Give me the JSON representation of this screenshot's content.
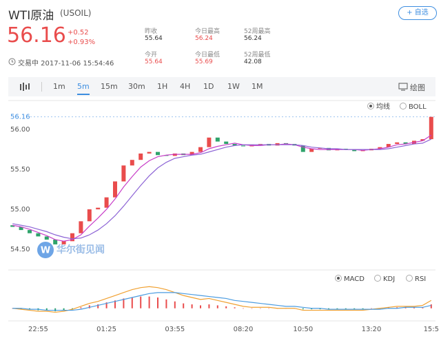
{
  "header": {
    "title": "WTI原油",
    "symbol": "(USOIL)",
    "button": "+ 自选",
    "price": "56.16",
    "change": "+0.52",
    "change_pct": "+0.93%",
    "status": "交易中 2017-11-06 15:54:46",
    "stats": [
      {
        "label": "昨收",
        "value": "55.64"
      },
      {
        "label": "今日最高",
        "value": "56.24"
      },
      {
        "label": "52周最高",
        "value": "56.24"
      },
      {
        "label": "今开",
        "value": "55.64"
      },
      {
        "label": "今日最低",
        "value": "55.69"
      },
      {
        "label": "52周最低",
        "value": "42.08"
      }
    ]
  },
  "toolbar": {
    "intervals": [
      "1m",
      "5m",
      "15m",
      "30m",
      "1H",
      "4H",
      "1D",
      "1W",
      "1M"
    ],
    "draw": "绘图"
  },
  "controls": {
    "overlay": [
      "均线",
      "BOLL"
    ],
    "panel": [
      "MACD",
      "KDJ",
      "RSI"
    ],
    "watermark": "华尔街见闻"
  },
  "chart_data": {
    "type": "candlestick",
    "up_color": "#e94c4c",
    "down_color": "#2fa36b",
    "categories": [
      null,
      null,
      null,
      "22:55",
      null,
      null,
      null,
      null,
      null,
      null,
      null,
      "01:25",
      null,
      null,
      null,
      null,
      null,
      null,
      null,
      "03:55",
      null,
      null,
      null,
      null,
      null,
      null,
      null,
      "08:20",
      null,
      null,
      null,
      null,
      null,
      null,
      "10:50",
      null,
      null,
      null,
      null,
      null,
      null,
      null,
      "13:20",
      null,
      null,
      null,
      null,
      null,
      null,
      "15:5"
    ],
    "open": [
      54.8,
      54.78,
      54.74,
      54.7,
      54.66,
      54.62,
      54.56,
      54.6,
      54.7,
      54.85,
      55.0,
      55.02,
      55.15,
      55.35,
      55.55,
      55.62,
      55.7,
      55.72,
      55.68,
      55.67,
      55.7,
      55.68,
      55.72,
      55.78,
      55.9,
      55.85,
      55.82,
      55.8,
      55.79,
      55.81,
      55.82,
      55.8,
      55.83,
      55.82,
      55.8,
      55.72,
      55.76,
      55.77,
      55.74,
      55.76,
      55.75,
      55.73,
      55.74,
      55.76,
      55.78,
      55.82,
      55.84,
      55.82,
      55.86,
      55.88
    ],
    "close": [
      54.78,
      54.74,
      54.7,
      54.66,
      54.62,
      54.56,
      54.6,
      54.7,
      54.85,
      55.0,
      55.02,
      55.15,
      55.35,
      55.55,
      55.62,
      55.7,
      55.72,
      55.68,
      55.67,
      55.7,
      55.68,
      55.72,
      55.78,
      55.9,
      55.85,
      55.82,
      55.8,
      55.79,
      55.81,
      55.82,
      55.8,
      55.83,
      55.82,
      55.8,
      55.72,
      55.76,
      55.77,
      55.74,
      55.76,
      55.75,
      55.73,
      55.74,
      55.76,
      55.78,
      55.82,
      55.84,
      55.82,
      55.86,
      55.88,
      56.16
    ],
    "ma": [
      {
        "color": "#c83ec8",
        "values": [
          54.8,
          54.78,
          54.75,
          54.71,
          54.67,
          54.62,
          54.6,
          54.62,
          54.68,
          54.79,
          54.89,
          55.0,
          55.13,
          55.28,
          55.41,
          55.53,
          55.61,
          55.66,
          55.68,
          55.69,
          55.69,
          55.69,
          55.71,
          55.76,
          55.79,
          55.81,
          55.83,
          55.81,
          55.8,
          55.8,
          55.81,
          55.81,
          55.82,
          55.81,
          55.78,
          55.76,
          55.75,
          55.75,
          55.75,
          55.75,
          55.75,
          55.74,
          55.75,
          55.76,
          55.78,
          55.81,
          55.82,
          55.84,
          55.86,
          55.93
        ]
      },
      {
        "color": "#8c63d5",
        "values": [
          54.82,
          54.8,
          54.78,
          54.75,
          54.72,
          54.68,
          54.65,
          54.63,
          54.64,
          54.68,
          54.74,
          54.82,
          54.92,
          55.04,
          55.17,
          55.3,
          55.42,
          55.52,
          55.59,
          55.64,
          55.66,
          55.68,
          55.69,
          55.72,
          55.75,
          55.78,
          55.8,
          55.81,
          55.81,
          55.81,
          55.81,
          55.81,
          55.81,
          55.81,
          55.8,
          55.78,
          55.77,
          55.76,
          55.76,
          55.75,
          55.75,
          55.75,
          55.75,
          55.75,
          55.76,
          55.78,
          55.8,
          55.82,
          55.83,
          55.88
        ]
      }
    ],
    "current": {
      "value": 56.16,
      "label": "56.16"
    },
    "ylim": [
      54.3,
      56.33
    ],
    "yticks": [
      {
        "value": 54.5,
        "label": "54.50"
      },
      {
        "value": 55,
        "label": "55.00"
      },
      {
        "value": 55.5,
        "label": "55.50"
      },
      {
        "value": 56,
        "label": "56.00"
      }
    ],
    "macd_ylim": [
      -0.1,
      0.25
    ],
    "macd_hist": [
      0.0,
      -0.01,
      -0.01,
      -0.02,
      -0.02,
      -0.03,
      -0.02,
      -0.01,
      0.01,
      0.03,
      0.04,
      0.06,
      0.08,
      0.1,
      0.11,
      0.12,
      0.12,
      0.11,
      0.09,
      0.07,
      0.05,
      0.04,
      0.03,
      0.04,
      0.03,
      0.02,
      0.01,
      0.0,
      0.0,
      0.0,
      0.0,
      0.0,
      0.0,
      0.0,
      -0.01,
      -0.01,
      -0.01,
      -0.01,
      -0.01,
      -0.01,
      -0.01,
      -0.01,
      0.0,
      0.0,
      0.01,
      0.01,
      0.01,
      0.01,
      0.01,
      0.04
    ],
    "macd_lines": [
      {
        "color": "#f0a030",
        "values": [
          0,
          -0.01,
          -0.02,
          -0.03,
          -0.03,
          -0.04,
          -0.03,
          -0.01,
          0.02,
          0.05,
          0.07,
          0.1,
          0.13,
          0.16,
          0.19,
          0.21,
          0.22,
          0.21,
          0.19,
          0.16,
          0.13,
          0.11,
          0.09,
          0.1,
          0.08,
          0.06,
          0.04,
          0.02,
          0.01,
          0.01,
          0.01,
          0,
          0,
          0,
          -0.02,
          -0.02,
          -0.02,
          -0.02,
          -0.02,
          -0.02,
          -0.02,
          -0.02,
          -0.01,
          0,
          0.01,
          0.02,
          0.02,
          0.02,
          0.03,
          0.08
        ]
      },
      {
        "color": "#4a9be0",
        "values": [
          0,
          0,
          -0.01,
          -0.01,
          -0.02,
          -0.02,
          -0.02,
          -0.02,
          -0.01,
          0.01,
          0.03,
          0.05,
          0.07,
          0.09,
          0.11,
          0.13,
          0.15,
          0.16,
          0.16,
          0.16,
          0.15,
          0.14,
          0.13,
          0.12,
          0.11,
          0.1,
          0.08,
          0.07,
          0.06,
          0.05,
          0.04,
          0.03,
          0.02,
          0.02,
          0.01,
          0,
          0,
          -0.01,
          -0.01,
          -0.01,
          -0.01,
          -0.01,
          -0.01,
          -0.01,
          0,
          0,
          0.01,
          0.01,
          0.01,
          0.03
        ]
      }
    ]
  }
}
